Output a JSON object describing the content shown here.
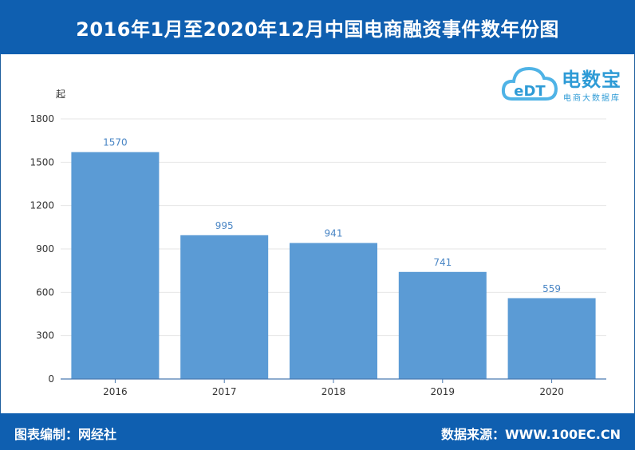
{
  "header": {
    "title": "2016年1月至2020年12月中国电商融资事件数年份图"
  },
  "footer": {
    "left": "图表编制：网经社",
    "right": "数据来源：WWW.100EC.CN"
  },
  "logo": {
    "brand": "电数宝",
    "tagline": "电商大数据库",
    "mark": "eDT"
  },
  "colors": {
    "header_bg": "#0f5fb0",
    "bar": "#5b9bd5",
    "data_label": "#4a86c5",
    "axis": "#4a7ab0",
    "grid": "#e6e6e6"
  },
  "chart_data": {
    "type": "bar",
    "categories": [
      "2016",
      "2017",
      "2018",
      "2019",
      "2020"
    ],
    "values": [
      1570,
      995,
      941,
      741,
      559
    ],
    "ylabel": "起",
    "ylim": [
      0,
      1800
    ],
    "yticks": [
      0,
      300,
      600,
      900,
      1200,
      1500,
      1800
    ],
    "grid": true,
    "data_labels": true
  }
}
